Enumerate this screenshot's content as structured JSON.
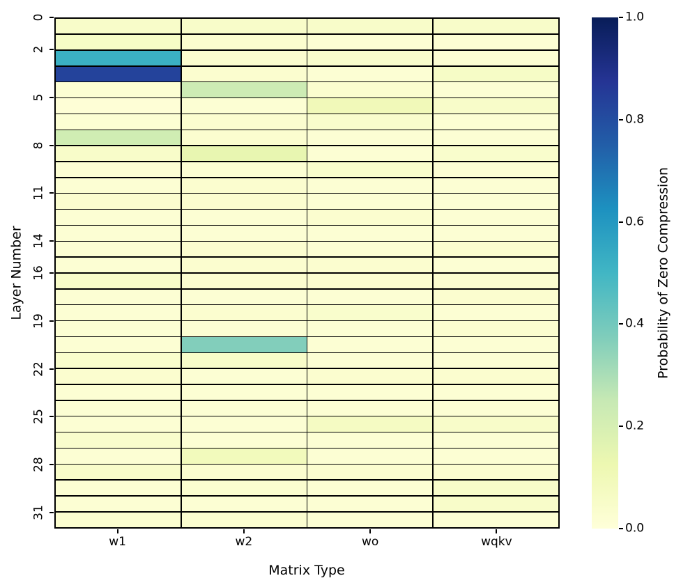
{
  "chart_data": {
    "type": "heatmap",
    "xlabel": "Matrix Type",
    "ylabel": "Layer Number",
    "colorbar_label": "Probability of Zero Compression",
    "categories": [
      "w1",
      "w2",
      "wo",
      "wqkv"
    ],
    "rows": 32,
    "vmin": 0.0,
    "vmax": 1.0,
    "ytick_positions": [
      0,
      2,
      5,
      8,
      11,
      14,
      16,
      19,
      22,
      25,
      28,
      31
    ],
    "ytick_labels": [
      "0",
      "2",
      "5",
      "8",
      "11",
      "14",
      "16",
      "19",
      "22",
      "25",
      "28",
      "31"
    ],
    "colorbar_ticks": [
      {
        "value": 1.0,
        "label": "1.0"
      },
      {
        "value": 0.8,
        "label": "0.8"
      },
      {
        "value": 0.6,
        "label": "0.6"
      },
      {
        "value": 0.4,
        "label": "0.4"
      },
      {
        "value": 0.2,
        "label": "0.2"
      },
      {
        "value": 0.0,
        "label": "0.0"
      }
    ],
    "colormap": {
      "name": "YlGnBu",
      "stops": [
        [
          0.0,
          "#ffffd9"
        ],
        [
          0.125,
          "#edf8b1"
        ],
        [
          0.25,
          "#c7e9b4"
        ],
        [
          0.375,
          "#7fcdbb"
        ],
        [
          0.5,
          "#41b6c4"
        ],
        [
          0.625,
          "#1d91c0"
        ],
        [
          0.75,
          "#225ea8"
        ],
        [
          0.875,
          "#253494"
        ],
        [
          1.0,
          "#081d58"
        ]
      ]
    },
    "grid_line_color": "#000000",
    "values": [
      [
        0.05,
        0.05,
        0.05,
        0.05
      ],
      [
        0.06,
        0.03,
        0.02,
        0.02
      ],
      [
        0.52,
        0.03,
        0.04,
        0.02
      ],
      [
        0.83,
        0.03,
        0.02,
        0.06
      ],
      [
        0.02,
        0.23,
        0.03,
        0.02
      ],
      [
        0.01,
        0.02,
        0.1,
        0.05
      ],
      [
        0.02,
        0.03,
        0.04,
        0.02
      ],
      [
        0.22,
        0.03,
        0.02,
        0.02
      ],
      [
        0.05,
        0.14,
        0.02,
        0.04
      ],
      [
        0.02,
        0.02,
        0.04,
        0.02
      ],
      [
        0.02,
        0.03,
        0.02,
        0.02
      ],
      [
        0.03,
        0.03,
        0.02,
        0.02
      ],
      [
        0.02,
        0.02,
        0.03,
        0.02
      ],
      [
        0.02,
        0.02,
        0.02,
        0.02
      ],
      [
        0.02,
        0.03,
        0.02,
        0.03
      ],
      [
        0.02,
        0.03,
        0.03,
        0.02
      ],
      [
        0.05,
        0.03,
        0.03,
        0.03
      ],
      [
        0.02,
        0.02,
        0.02,
        0.03
      ],
      [
        0.02,
        0.03,
        0.04,
        0.02
      ],
      [
        0.02,
        0.02,
        0.02,
        0.03
      ],
      [
        0.02,
        0.37,
        0.02,
        0.02
      ],
      [
        0.04,
        0.05,
        0.02,
        0.02
      ],
      [
        0.03,
        0.02,
        0.03,
        0.03
      ],
      [
        0.02,
        0.02,
        0.02,
        0.02
      ],
      [
        0.02,
        0.02,
        0.02,
        0.02
      ],
      [
        0.02,
        0.02,
        0.07,
        0.05
      ],
      [
        0.04,
        0.02,
        0.02,
        0.02
      ],
      [
        0.02,
        0.09,
        0.02,
        0.02
      ],
      [
        0.05,
        0.03,
        0.03,
        0.03
      ],
      [
        0.02,
        0.03,
        0.02,
        0.05
      ],
      [
        0.02,
        0.02,
        0.02,
        0.05
      ],
      [
        0.03,
        0.03,
        0.02,
        0.02
      ]
    ]
  }
}
